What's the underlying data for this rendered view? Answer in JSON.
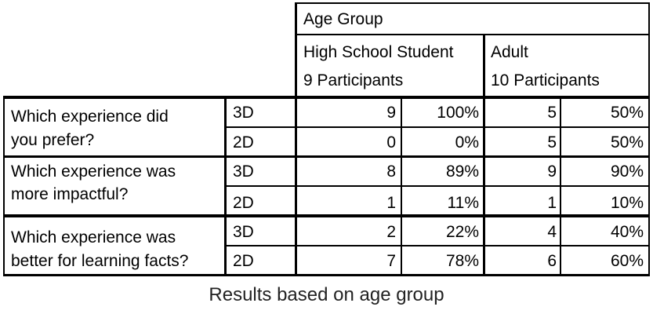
{
  "table": {
    "group_header": "Age Group",
    "columns": [
      {
        "name": "High School Student",
        "participants": "9 Participants"
      },
      {
        "name": "Adult",
        "participants": "10 Participants"
      }
    ],
    "questions": [
      {
        "lines": [
          "Which experience did",
          "you prefer?"
        ],
        "rows": [
          {
            "label": "3D",
            "hs_count": "9",
            "hs_pct": "100%",
            "adult_count": "5",
            "adult_pct": "50%"
          },
          {
            "label": "2D",
            "hs_count": "0",
            "hs_pct": "0%",
            "adult_count": "5",
            "adult_pct": "50%"
          }
        ]
      },
      {
        "lines": [
          "Which experience was",
          "more impactful?"
        ],
        "rows": [
          {
            "label": "3D",
            "hs_count": "8",
            "hs_pct": "89%",
            "adult_count": "9",
            "adult_pct": "90%"
          },
          {
            "label": "2D",
            "hs_count": "1",
            "hs_pct": "11%",
            "adult_count": "1",
            "adult_pct": "10%"
          }
        ]
      },
      {
        "lines": [
          "Which experience was",
          "better for learning facts?"
        ],
        "rows": [
          {
            "label": "3D",
            "hs_count": "2",
            "hs_pct": "22%",
            "adult_count": "4",
            "adult_pct": "40%"
          },
          {
            "label": "2D",
            "hs_count": "7",
            "hs_pct": "78%",
            "adult_count": "6",
            "adult_pct": "60%"
          }
        ]
      }
    ]
  },
  "caption": "Results based on age group"
}
